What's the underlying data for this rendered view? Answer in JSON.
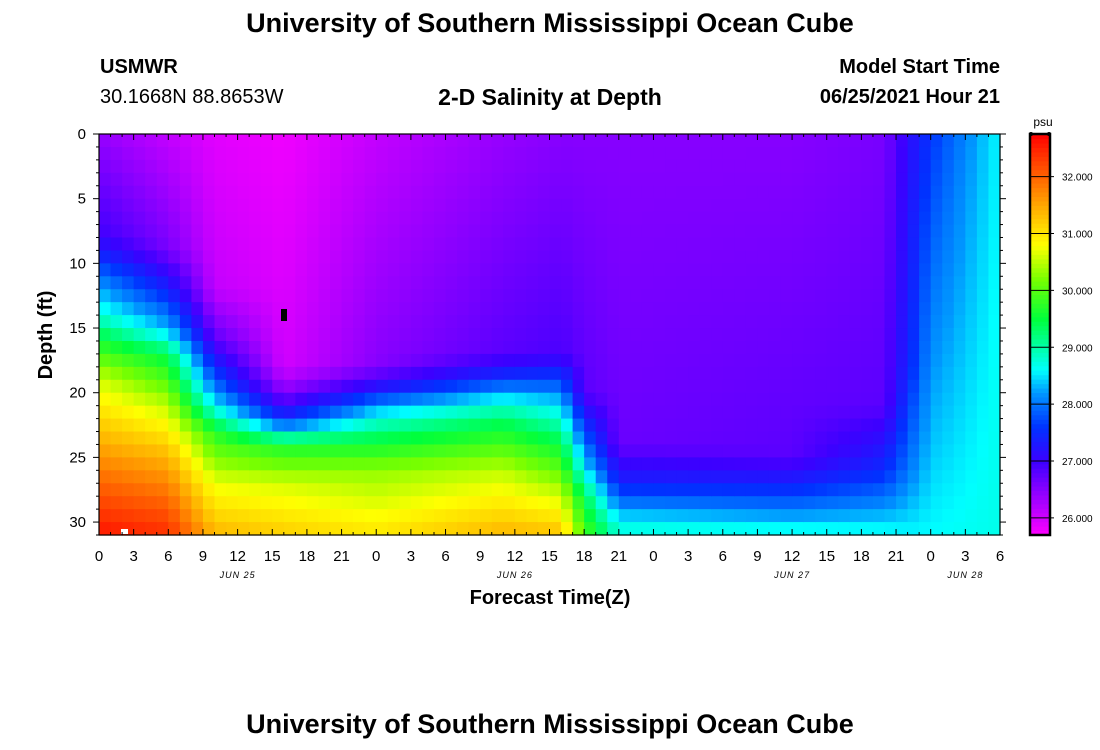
{
  "page_title": "University of Southern Mississippi Ocean Cube",
  "footer_title": "University of Southern Mississippi Ocean Cube",
  "station": {
    "name": "USMWR",
    "coords": "30.1668N  88.8653W"
  },
  "plot_title": "2-D Salinity at Depth",
  "model_start": {
    "label": "Model Start Time",
    "value": "06/25/2021 Hour 21"
  },
  "colorbar": {
    "unit": "psu",
    "ticks": [
      "32.000",
      "31.000",
      "30.000",
      "29.000",
      "28.000",
      "27.000",
      "26.000"
    ],
    "tick_values": [
      32,
      31,
      30,
      29,
      28,
      27,
      26
    ],
    "range": [
      25.7,
      32.75
    ]
  },
  "chart_data": {
    "type": "heatmap",
    "title": "2-D Salinity at Depth",
    "xlabel": "Forecast Time(Z)",
    "ylabel": "Depth (ft)",
    "x_range_hours": [
      0,
      78
    ],
    "y_range_ft": [
      0,
      31
    ],
    "x_ticks": [
      "0",
      "3",
      "6",
      "9",
      "12",
      "15",
      "18",
      "21",
      "0",
      "3",
      "6",
      "9",
      "12",
      "15",
      "18",
      "21",
      "0",
      "3",
      "6",
      "9",
      "12",
      "15",
      "18",
      "21",
      "0",
      "3",
      "6"
    ],
    "y_ticks": [
      "0",
      "5",
      "10",
      "15",
      "20",
      "25",
      "30"
    ],
    "y_tick_values": [
      0,
      5,
      10,
      15,
      20,
      25,
      30
    ],
    "date_labels": [
      {
        "text": "JUN 25",
        "hour": 12
      },
      {
        "text": "JUN 26",
        "hour": 36
      },
      {
        "text": "JUN 27",
        "hour": 60
      },
      {
        "text": "JUN 28",
        "hour": 75
      }
    ],
    "salinity_unit": "psu",
    "value_range": [
      25.7,
      32.75
    ],
    "depth_profiles": [
      {
        "hour": 0,
        "points": [
          [
            0,
            26.4
          ],
          [
            8,
            27.0
          ],
          [
            11,
            28.0
          ],
          [
            14,
            28.8
          ],
          [
            16,
            29.6
          ],
          [
            19,
            30.6
          ],
          [
            23,
            31.3
          ],
          [
            27,
            32.0
          ],
          [
            31,
            32.6
          ]
        ]
      },
      {
        "hour": 6,
        "points": [
          [
            0,
            26.1
          ],
          [
            9,
            26.6
          ],
          [
            12,
            27.4
          ],
          [
            15,
            28.3
          ],
          [
            17,
            29.4
          ],
          [
            21,
            30.5
          ],
          [
            25,
            31.4
          ],
          [
            29,
            32.1
          ],
          [
            31,
            32.4
          ]
        ]
      },
      {
        "hour": 10,
        "points": [
          [
            0,
            25.9
          ],
          [
            12,
            26.1
          ],
          [
            16,
            26.8
          ],
          [
            19,
            27.8
          ],
          [
            21,
            28.6
          ],
          [
            23,
            29.7
          ],
          [
            27,
            30.7
          ],
          [
            31,
            31.4
          ]
        ]
      },
      {
        "hour": 16,
        "points": [
          [
            0,
            25.8
          ],
          [
            18,
            26.0
          ],
          [
            20,
            26.5
          ],
          [
            22,
            27.5
          ],
          [
            23,
            28.5
          ],
          [
            24,
            29.6
          ],
          [
            27,
            30.6
          ],
          [
            31,
            31.2
          ]
        ]
      },
      {
        "hour": 24,
        "points": [
          [
            0,
            26.1
          ],
          [
            18,
            26.5
          ],
          [
            20,
            27.4
          ],
          [
            21,
            28.2
          ],
          [
            23,
            29.2
          ],
          [
            26,
            30.3
          ],
          [
            31,
            31.0
          ]
        ]
      },
      {
        "hour": 35,
        "points": [
          [
            0,
            26.4
          ],
          [
            17,
            26.8
          ],
          [
            19,
            27.6
          ],
          [
            20,
            28.3
          ],
          [
            22,
            29.3
          ],
          [
            26,
            30.5
          ],
          [
            31,
            31.4
          ]
        ]
      },
      {
        "hour": 40,
        "points": [
          [
            0,
            26.5
          ],
          [
            17,
            26.9
          ],
          [
            19,
            27.7
          ],
          [
            21,
            28.5
          ],
          [
            24,
            29.5
          ],
          [
            28,
            30.6
          ],
          [
            31,
            31.3
          ]
        ]
      },
      {
        "hour": 42,
        "points": [
          [
            0,
            26.5
          ],
          [
            20,
            26.8
          ],
          [
            23,
            27.7
          ],
          [
            26,
            28.6
          ],
          [
            28,
            29.4
          ],
          [
            31,
            30.0
          ]
        ]
      },
      {
        "hour": 45,
        "points": [
          [
            0,
            26.5
          ],
          [
            24,
            26.7
          ],
          [
            27,
            27.4
          ],
          [
            29,
            28.2
          ],
          [
            30,
            28.6
          ],
          [
            31,
            28.8
          ]
        ]
      },
      {
        "hour": 60,
        "points": [
          [
            0,
            26.5
          ],
          [
            25,
            26.8
          ],
          [
            28,
            27.7
          ],
          [
            30,
            28.4
          ],
          [
            31,
            28.8
          ]
        ]
      },
      {
        "hour": 68,
        "points": [
          [
            0,
            26.6
          ],
          [
            21,
            26.8
          ],
          [
            26,
            27.5
          ],
          [
            29,
            28.2
          ],
          [
            31,
            28.7
          ]
        ]
      },
      {
        "hour": 70,
        "points": [
          [
            0,
            27.1
          ],
          [
            18,
            27.4
          ],
          [
            26,
            28.0
          ],
          [
            31,
            28.6
          ]
        ]
      },
      {
        "hour": 72,
        "points": [
          [
            0,
            27.6
          ],
          [
            31,
            28.6
          ]
        ]
      },
      {
        "hour": 78,
        "points": [
          [
            0,
            28.6
          ],
          [
            31,
            28.7
          ]
        ]
      }
    ]
  }
}
